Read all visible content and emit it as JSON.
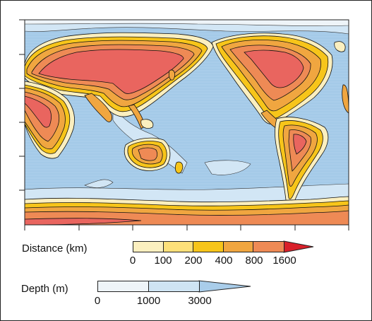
{
  "colors": {
    "ocean_deep": "#a9cdea",
    "ocean_shallow": "#d2e6f5",
    "shelf": "#eef4f8",
    "dist_0_100": "#fbefbf",
    "dist_100_200": "#fde07a",
    "dist_200_400": "#f7c51a",
    "dist_400_800": "#f0a640",
    "dist_800_1600": "#ee8a55",
    "dist_1600_plus": "#e9655f",
    "arrow_red": "#d9202a",
    "arrow_blue": "#a9cdea"
  },
  "distance_legend": {
    "title": "Distance (km)",
    "ticks": [
      "0",
      "100",
      "200",
      "400",
      "800",
      "1600"
    ],
    "colors": [
      "#fbefbf",
      "#fde07a",
      "#f7c51a",
      "#f0a640",
      "#ee8a55"
    ],
    "arrow_color": "#d9202a"
  },
  "depth_legend": {
    "title": "Depth (m)",
    "ticks": [
      "0",
      "1000",
      "3000"
    ],
    "colors": [
      "#eef4f8",
      "#cfe4f3"
    ],
    "arrow_color": "#a9cdea"
  }
}
